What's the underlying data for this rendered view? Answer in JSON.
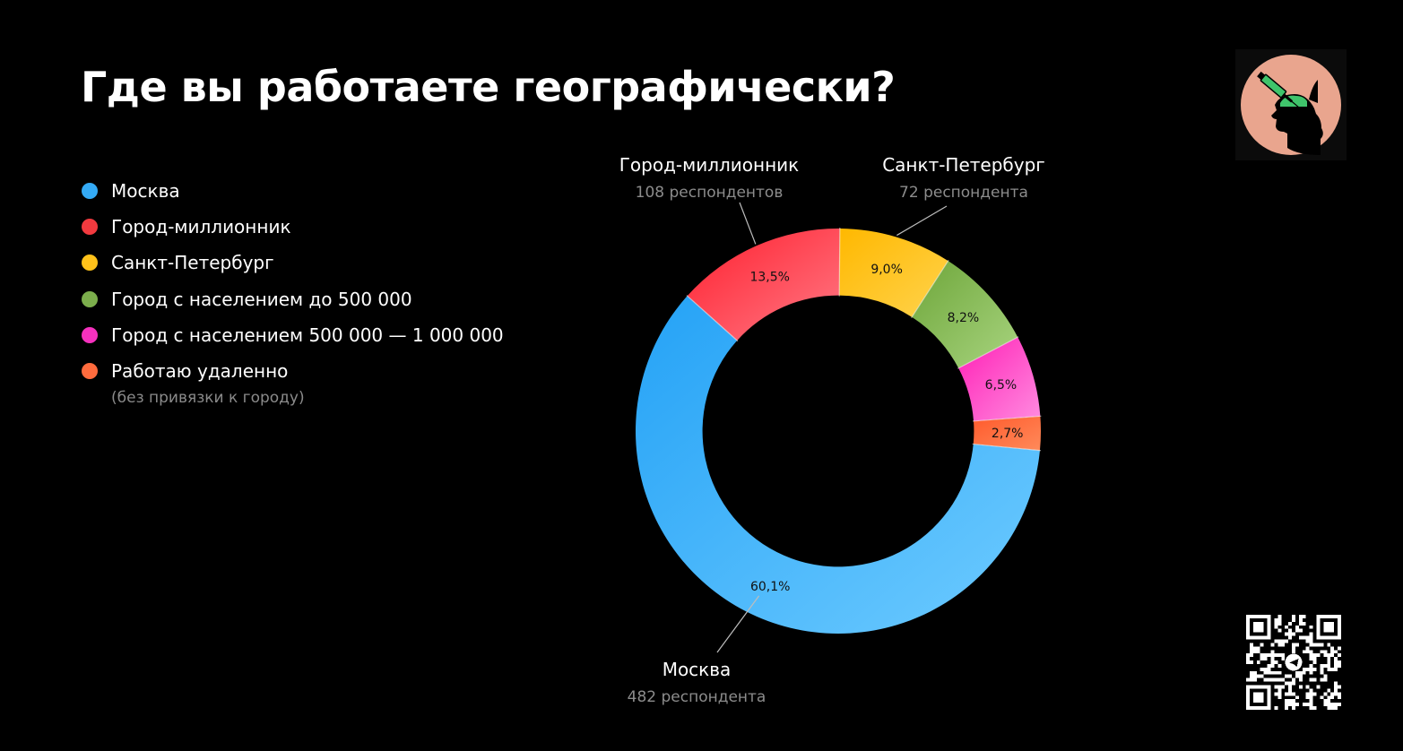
{
  "page": {
    "title": "Где вы работаете географически?"
  },
  "legend": [
    {
      "label": "Москва",
      "color": "#34aaf5",
      "sub": ""
    },
    {
      "label": "Город-миллионник",
      "color": "#f23a3f",
      "sub": ""
    },
    {
      "label": "Санкт-Петербург",
      "color": "#ffc21a",
      "sub": ""
    },
    {
      "label": "Город с населением до 500 000",
      "color": "#7cae4c",
      "sub": ""
    },
    {
      "label": "Город с населением 500 000 — 1 000 000",
      "color": "#f531be",
      "sub": ""
    },
    {
      "label": "Работаю удаленно",
      "color": "#ff6b3d",
      "sub": "(без привязки к городу)"
    }
  ],
  "chart_data": {
    "type": "pie",
    "title": "Где вы работаете географически?",
    "slices": [
      {
        "name": "Москва",
        "value": 60.1,
        "label": "60,1%",
        "color_dark": "#24a2f6",
        "color_light": "#6ecbff"
      },
      {
        "name": "Город-миллионник",
        "value": 13.5,
        "label": "13,5%",
        "color_dark": "#ff1f2e",
        "color_light": "#ff7a86"
      },
      {
        "name": "Санкт-Петербург",
        "value": 9.0,
        "label": "9,0%",
        "color_dark": "#ffb800",
        "color_light": "#ffd34d"
      },
      {
        "name": "Город с населением до 500 000",
        "value": 8.2,
        "label": "8,2%",
        "color_dark": "#6ea63a",
        "color_light": "#a8d47f"
      },
      {
        "name": "Город с населением 500 000 — 1 000 000",
        "value": 6.5,
        "label": "6,5%",
        "color_dark": "#ff1fb5",
        "color_light": "#ff8be0"
      },
      {
        "name": "Работаю удаленно",
        "value": 2.7,
        "label": "2,7%",
        "color_dark": "#ff5a2c",
        "color_light": "#ff8a5a"
      }
    ],
    "callouts": [
      {
        "slice": "Город-миллионник",
        "name": "Город-миллионник",
        "count": "108 респондентов"
      },
      {
        "slice": "Санкт-Петербург",
        "name": "Санкт-Петербург",
        "count": "72 респондента"
      },
      {
        "slice": "Москва",
        "name": "Москва",
        "count": "482 респондента"
      }
    ],
    "inner_radius_ratio": 0.67
  },
  "icons": {
    "logo": "brain-syringe-logo-icon",
    "qr": "telegram-qr-code-icon"
  }
}
